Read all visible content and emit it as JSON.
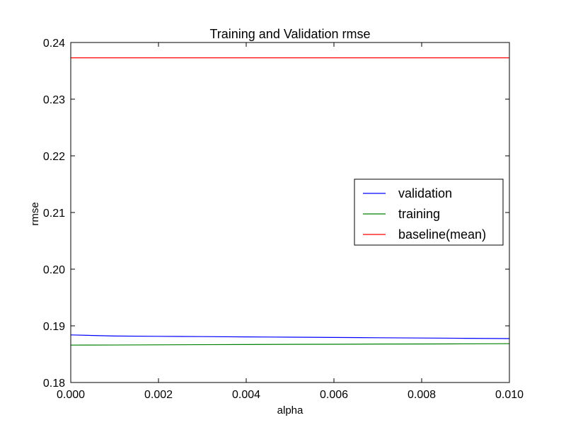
{
  "chart_data": {
    "type": "line",
    "title": "Training and Validation rmse",
    "xlabel": "alpha",
    "ylabel": "rmse",
    "xlim": [
      0.0,
      0.01
    ],
    "ylim": [
      0.18,
      0.24
    ],
    "xticks": [
      "0.000",
      "0.002",
      "0.004",
      "0.006",
      "0.008",
      "0.010"
    ],
    "yticks": [
      "0.18",
      "0.19",
      "0.20",
      "0.21",
      "0.22",
      "0.23",
      "0.24"
    ],
    "grid": false,
    "legend_position": "center-right",
    "series": [
      {
        "name": "validation",
        "color": "#0000ff",
        "x": [
          0.0,
          0.001,
          0.002,
          0.003,
          0.004,
          0.005,
          0.006,
          0.007,
          0.008,
          0.009,
          0.01
        ],
        "y": [
          0.1884,
          0.1882,
          0.18815,
          0.1881,
          0.18805,
          0.188,
          0.18795,
          0.1879,
          0.18785,
          0.1878,
          0.18775
        ]
      },
      {
        "name": "training",
        "color": "#008000",
        "x": [
          0.0,
          0.001,
          0.002,
          0.003,
          0.004,
          0.005,
          0.006,
          0.007,
          0.008,
          0.009,
          0.01
        ],
        "y": [
          0.1866,
          0.18662,
          0.18665,
          0.18668,
          0.1867,
          0.18673,
          0.18675,
          0.18678,
          0.1868,
          0.18682,
          0.18685
        ]
      },
      {
        "name": "baseline(mean)",
        "color": "#ff0000",
        "x": [
          0.0,
          0.01
        ],
        "y": [
          0.2373,
          0.2373
        ]
      }
    ]
  }
}
